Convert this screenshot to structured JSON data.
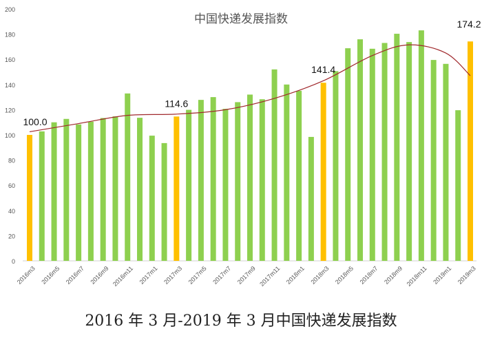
{
  "chart_data": {
    "type": "bar",
    "title": "中国快递发展指数",
    "caption": "2016 年 3 月-2019 年 3 月中国快递发展指数",
    "xlabel": "",
    "ylabel": "",
    "ylim": [
      0,
      200
    ],
    "yticks": [
      0,
      20,
      40,
      60,
      80,
      100,
      120,
      140,
      160,
      180,
      200
    ],
    "grid": false,
    "categories": [
      "2016m3",
      "2016m4",
      "2016m5",
      "2016m6",
      "2016m7",
      "2016m8",
      "2016m9",
      "2016m10",
      "2016m11",
      "2016m12",
      "2017m1",
      "2017m2",
      "2017m3",
      "2017m4",
      "2017m5",
      "2017m6",
      "2017m7",
      "2017m8",
      "2017m9",
      "2017m10",
      "2017m11",
      "2017m12",
      "2018m1",
      "2018m2",
      "2018m3",
      "2018m4",
      "2018m5",
      "2018m6",
      "2018m7",
      "2018m8",
      "2018m9",
      "2018m10",
      "2018m11",
      "2018m12",
      "2019m1",
      "2019m2",
      "2019m3"
    ],
    "xtick_labels": [
      "2016m3",
      "2016m5",
      "2016m7",
      "2016m9",
      "2016m11",
      "2017m1",
      "2017m3",
      "2017m5",
      "2017m7",
      "2017m9",
      "2017m11",
      "2018m1",
      "2018m3",
      "2018m5",
      "2018m7",
      "2018m9",
      "2018m11",
      "2019m1",
      "2019m3"
    ],
    "values": [
      100.0,
      102.8,
      110.0,
      112.7,
      108.3,
      110.5,
      113.4,
      114.7,
      132.9,
      113.6,
      99.4,
      93.5,
      114.6,
      119.9,
      127.8,
      130.0,
      120.7,
      126.0,
      132.0,
      128.3,
      152.0,
      140.0,
      135.0,
      98.4,
      141.4,
      150.6,
      168.8,
      175.9,
      168.4,
      173.0,
      180.3,
      173.7,
      183.0,
      159.5,
      156.4,
      119.6,
      174.2
    ],
    "highlighted": [
      "2016m3",
      "2017m3",
      "2018m3",
      "2019m3"
    ],
    "data_labels": [
      {
        "category": "2016m3",
        "text": "100.0"
      },
      {
        "category": "2017m3",
        "text": "114.6"
      },
      {
        "category": "2018m3",
        "text": "141.4"
      },
      {
        "category": "2019m3",
        "text": "174.2"
      }
    ],
    "trendline": {
      "type": "polynomial",
      "points": [
        [
          0,
          102.5
        ],
        [
          4,
          109
        ],
        [
          8,
          115.5
        ],
        [
          12,
          116.5
        ],
        [
          16,
          120
        ],
        [
          20,
          129
        ],
        [
          24,
          143
        ],
        [
          28,
          163
        ],
        [
          31,
          171.5
        ],
        [
          34,
          165
        ],
        [
          36,
          147
        ]
      ]
    },
    "colors": {
      "bar": "#8ed04f",
      "highlight": "#ffc000",
      "trend": "#a0282c",
      "axis": "#d0d0d0",
      "tick_text": "#555555"
    }
  }
}
